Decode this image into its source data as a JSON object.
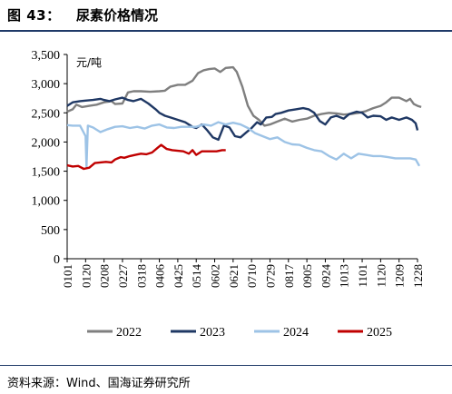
{
  "header": {
    "figure_label": "图 43：",
    "title": "尿素价格情况"
  },
  "source": "资料来源：Wind、国海证券研究所",
  "chart_data": {
    "type": "line",
    "unit_label": "元/吨",
    "ylim": [
      0,
      3500
    ],
    "yticks": [
      0,
      500,
      1000,
      1500,
      2000,
      2500,
      3000,
      3500
    ],
    "ytick_labels": [
      "0",
      "500",
      "1,000",
      "1,500",
      "2,000",
      "2,500",
      "3,000",
      "3,500"
    ],
    "x_labels": [
      "0101",
      "0120",
      "0208",
      "0227",
      "0318",
      "0406",
      "0425",
      "0514",
      "0602",
      "0621",
      "0710",
      "0729",
      "0817",
      "0905",
      "0924",
      "1013",
      "1101",
      "1120",
      "1209",
      "1228"
    ],
    "legend_position": "bottom",
    "grid": false,
    "series": [
      {
        "name": "2022",
        "color": "#7f7f7f",
        "points": [
          [
            0,
            2520
          ],
          [
            0.3,
            2560
          ],
          [
            0.5,
            2640
          ],
          [
            0.8,
            2600
          ],
          [
            1.2,
            2620
          ],
          [
            1.6,
            2640
          ],
          [
            2.0,
            2680
          ],
          [
            2.4,
            2700
          ],
          [
            2.6,
            2650
          ],
          [
            3.0,
            2660
          ],
          [
            3.3,
            2850
          ],
          [
            3.6,
            2870
          ],
          [
            4.0,
            2870
          ],
          [
            4.5,
            2860
          ],
          [
            5.0,
            2870
          ],
          [
            5.3,
            2880
          ],
          [
            5.6,
            2950
          ],
          [
            6.0,
            2980
          ],
          [
            6.4,
            2980
          ],
          [
            6.8,
            3050
          ],
          [
            7.1,
            3180
          ],
          [
            7.4,
            3230
          ],
          [
            7.7,
            3250
          ],
          [
            8.0,
            3260
          ],
          [
            8.3,
            3200
          ],
          [
            8.6,
            3270
          ],
          [
            9.0,
            3280
          ],
          [
            9.2,
            3200
          ],
          [
            9.5,
            2950
          ],
          [
            9.8,
            2620
          ],
          [
            10.1,
            2450
          ],
          [
            10.4,
            2380
          ],
          [
            10.7,
            2280
          ],
          [
            11.0,
            2300
          ],
          [
            11.4,
            2350
          ],
          [
            11.8,
            2400
          ],
          [
            12.2,
            2350
          ],
          [
            12.6,
            2380
          ],
          [
            13.0,
            2400
          ],
          [
            13.4,
            2450
          ],
          [
            13.8,
            2480
          ],
          [
            14.2,
            2500
          ],
          [
            14.6,
            2490
          ],
          [
            15.0,
            2470
          ],
          [
            15.4,
            2480
          ],
          [
            15.8,
            2500
          ],
          [
            16.2,
            2530
          ],
          [
            16.6,
            2580
          ],
          [
            17.0,
            2620
          ],
          [
            17.3,
            2680
          ],
          [
            17.6,
            2760
          ],
          [
            18.0,
            2760
          ],
          [
            18.4,
            2700
          ],
          [
            18.6,
            2740
          ],
          [
            18.8,
            2650
          ],
          [
            19.0,
            2620
          ],
          [
            19.2,
            2600
          ]
        ]
      },
      {
        "name": "2023",
        "color": "#1f3864",
        "points": [
          [
            0,
            2620
          ],
          [
            0.3,
            2680
          ],
          [
            0.7,
            2700
          ],
          [
            1.0,
            2710
          ],
          [
            1.4,
            2720
          ],
          [
            1.8,
            2740
          ],
          [
            2.0,
            2720
          ],
          [
            2.3,
            2700
          ],
          [
            2.6,
            2730
          ],
          [
            3.0,
            2760
          ],
          [
            3.3,
            2720
          ],
          [
            3.6,
            2700
          ],
          [
            4.0,
            2740
          ],
          [
            4.4,
            2660
          ],
          [
            4.8,
            2560
          ],
          [
            5.0,
            2500
          ],
          [
            5.3,
            2450
          ],
          [
            5.6,
            2420
          ],
          [
            6.0,
            2380
          ],
          [
            6.4,
            2340
          ],
          [
            6.8,
            2260
          ],
          [
            7.0,
            2240
          ],
          [
            7.3,
            2300
          ],
          [
            7.6,
            2200
          ],
          [
            7.9,
            2080
          ],
          [
            8.2,
            2040
          ],
          [
            8.5,
            2280
          ],
          [
            8.8,
            2250
          ],
          [
            9.1,
            2100
          ],
          [
            9.4,
            2080
          ],
          [
            9.7,
            2160
          ],
          [
            10.0,
            2240
          ],
          [
            10.3,
            2340
          ],
          [
            10.5,
            2300
          ],
          [
            10.8,
            2420
          ],
          [
            11.1,
            2430
          ],
          [
            11.3,
            2480
          ],
          [
            11.6,
            2500
          ],
          [
            12.0,
            2540
          ],
          [
            12.4,
            2560
          ],
          [
            12.8,
            2580
          ],
          [
            13.1,
            2560
          ],
          [
            13.4,
            2500
          ],
          [
            13.7,
            2360
          ],
          [
            14.0,
            2300
          ],
          [
            14.3,
            2420
          ],
          [
            14.6,
            2450
          ],
          [
            15.0,
            2400
          ],
          [
            15.3,
            2480
          ],
          [
            15.7,
            2520
          ],
          [
            16.0,
            2500
          ],
          [
            16.3,
            2420
          ],
          [
            16.6,
            2450
          ],
          [
            17.0,
            2440
          ],
          [
            17.3,
            2380
          ],
          [
            17.6,
            2420
          ],
          [
            18.0,
            2380
          ],
          [
            18.4,
            2420
          ],
          [
            18.7,
            2380
          ],
          [
            18.9,
            2320
          ],
          [
            19.0,
            2200
          ]
        ]
      },
      {
        "name": "2024",
        "color": "#9dc3e6",
        "points": [
          [
            0,
            2290
          ],
          [
            0.3,
            2280
          ],
          [
            0.7,
            2280
          ],
          [
            1.0,
            2100
          ],
          [
            1.05,
            1580
          ],
          [
            1.12,
            2280
          ],
          [
            1.4,
            2250
          ],
          [
            1.8,
            2170
          ],
          [
            2.2,
            2220
          ],
          [
            2.6,
            2260
          ],
          [
            3.0,
            2270
          ],
          [
            3.4,
            2240
          ],
          [
            3.8,
            2260
          ],
          [
            4.2,
            2230
          ],
          [
            4.6,
            2280
          ],
          [
            5.0,
            2300
          ],
          [
            5.4,
            2250
          ],
          [
            5.8,
            2240
          ],
          [
            6.2,
            2260
          ],
          [
            6.6,
            2260
          ],
          [
            7.0,
            2260
          ],
          [
            7.4,
            2300
          ],
          [
            7.8,
            2280
          ],
          [
            8.2,
            2340
          ],
          [
            8.6,
            2300
          ],
          [
            9.0,
            2330
          ],
          [
            9.4,
            2300
          ],
          [
            9.8,
            2240
          ],
          [
            10.2,
            2150
          ],
          [
            10.6,
            2100
          ],
          [
            11.0,
            2050
          ],
          [
            11.4,
            2080
          ],
          [
            11.8,
            2000
          ],
          [
            12.2,
            1960
          ],
          [
            12.6,
            1950
          ],
          [
            13.0,
            1900
          ],
          [
            13.4,
            1860
          ],
          [
            13.8,
            1840
          ],
          [
            14.2,
            1760
          ],
          [
            14.6,
            1700
          ],
          [
            15.0,
            1800
          ],
          [
            15.4,
            1720
          ],
          [
            15.8,
            1800
          ],
          [
            16.2,
            1780
          ],
          [
            16.6,
            1760
          ],
          [
            17.0,
            1760
          ],
          [
            17.4,
            1740
          ],
          [
            17.8,
            1720
          ],
          [
            18.2,
            1720
          ],
          [
            18.6,
            1720
          ],
          [
            18.9,
            1700
          ],
          [
            19.1,
            1590
          ]
        ]
      },
      {
        "name": "2025",
        "color": "#c00000",
        "points": [
          [
            0,
            1600
          ],
          [
            0.3,
            1580
          ],
          [
            0.6,
            1590
          ],
          [
            0.9,
            1540
          ],
          [
            1.2,
            1560
          ],
          [
            1.5,
            1640
          ],
          [
            1.8,
            1650
          ],
          [
            2.1,
            1660
          ],
          [
            2.4,
            1650
          ],
          [
            2.6,
            1700
          ],
          [
            2.9,
            1740
          ],
          [
            3.1,
            1730
          ],
          [
            3.4,
            1760
          ],
          [
            3.7,
            1780
          ],
          [
            4.0,
            1800
          ],
          [
            4.3,
            1790
          ],
          [
            4.6,
            1820
          ],
          [
            4.9,
            1900
          ],
          [
            5.1,
            1950
          ],
          [
            5.4,
            1880
          ],
          [
            5.7,
            1860
          ],
          [
            6.0,
            1850
          ],
          [
            6.3,
            1840
          ],
          [
            6.6,
            1800
          ],
          [
            6.8,
            1860
          ],
          [
            7.0,
            1780
          ],
          [
            7.3,
            1840
          ],
          [
            7.7,
            1840
          ],
          [
            8.1,
            1840
          ],
          [
            8.4,
            1860
          ],
          [
            8.6,
            1860
          ]
        ]
      }
    ]
  }
}
